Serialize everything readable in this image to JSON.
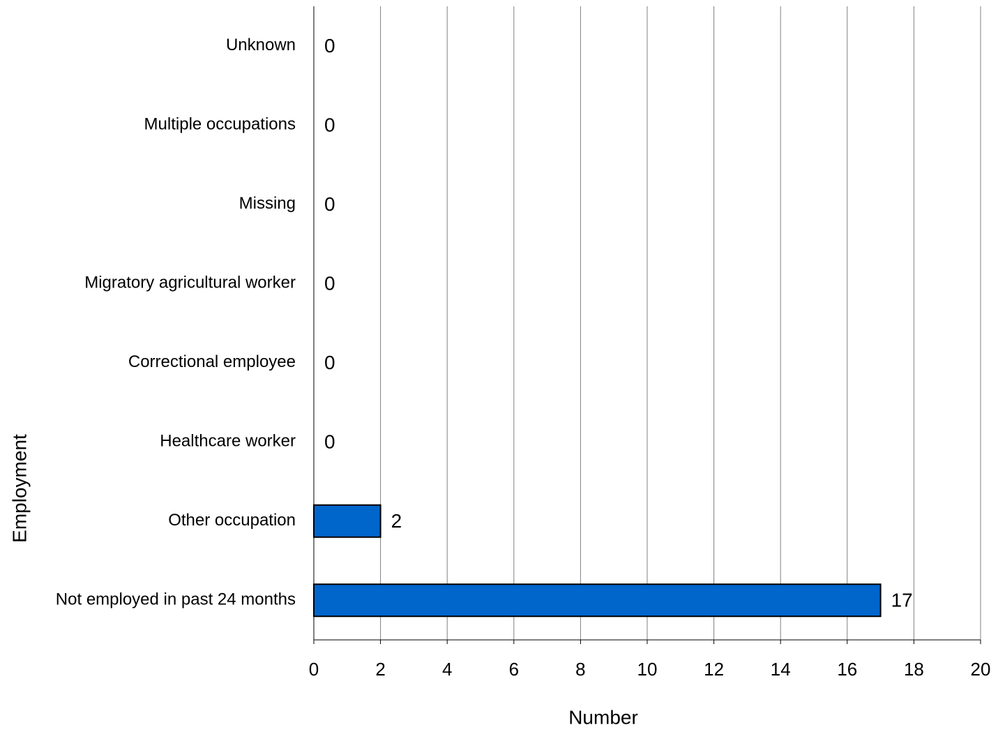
{
  "chart_data": {
    "type": "barh",
    "x_label": "Number",
    "y_label": "Employment",
    "categories": [
      "Unknown",
      "Multiple occupations",
      "Missing",
      "Migratory agricultural worker",
      "Correctional employee",
      "Healthcare worker",
      "Other occupation",
      "Not employed in past 24 months"
    ],
    "values": [
      0,
      0,
      0,
      0,
      0,
      0,
      2,
      17
    ],
    "color": "#0066cc",
    "xlim": [
      0,
      20
    ],
    "xticks": [
      0,
      2,
      4,
      6,
      8,
      10,
      12,
      14,
      16,
      18,
      20
    ],
    "grid": true
  }
}
